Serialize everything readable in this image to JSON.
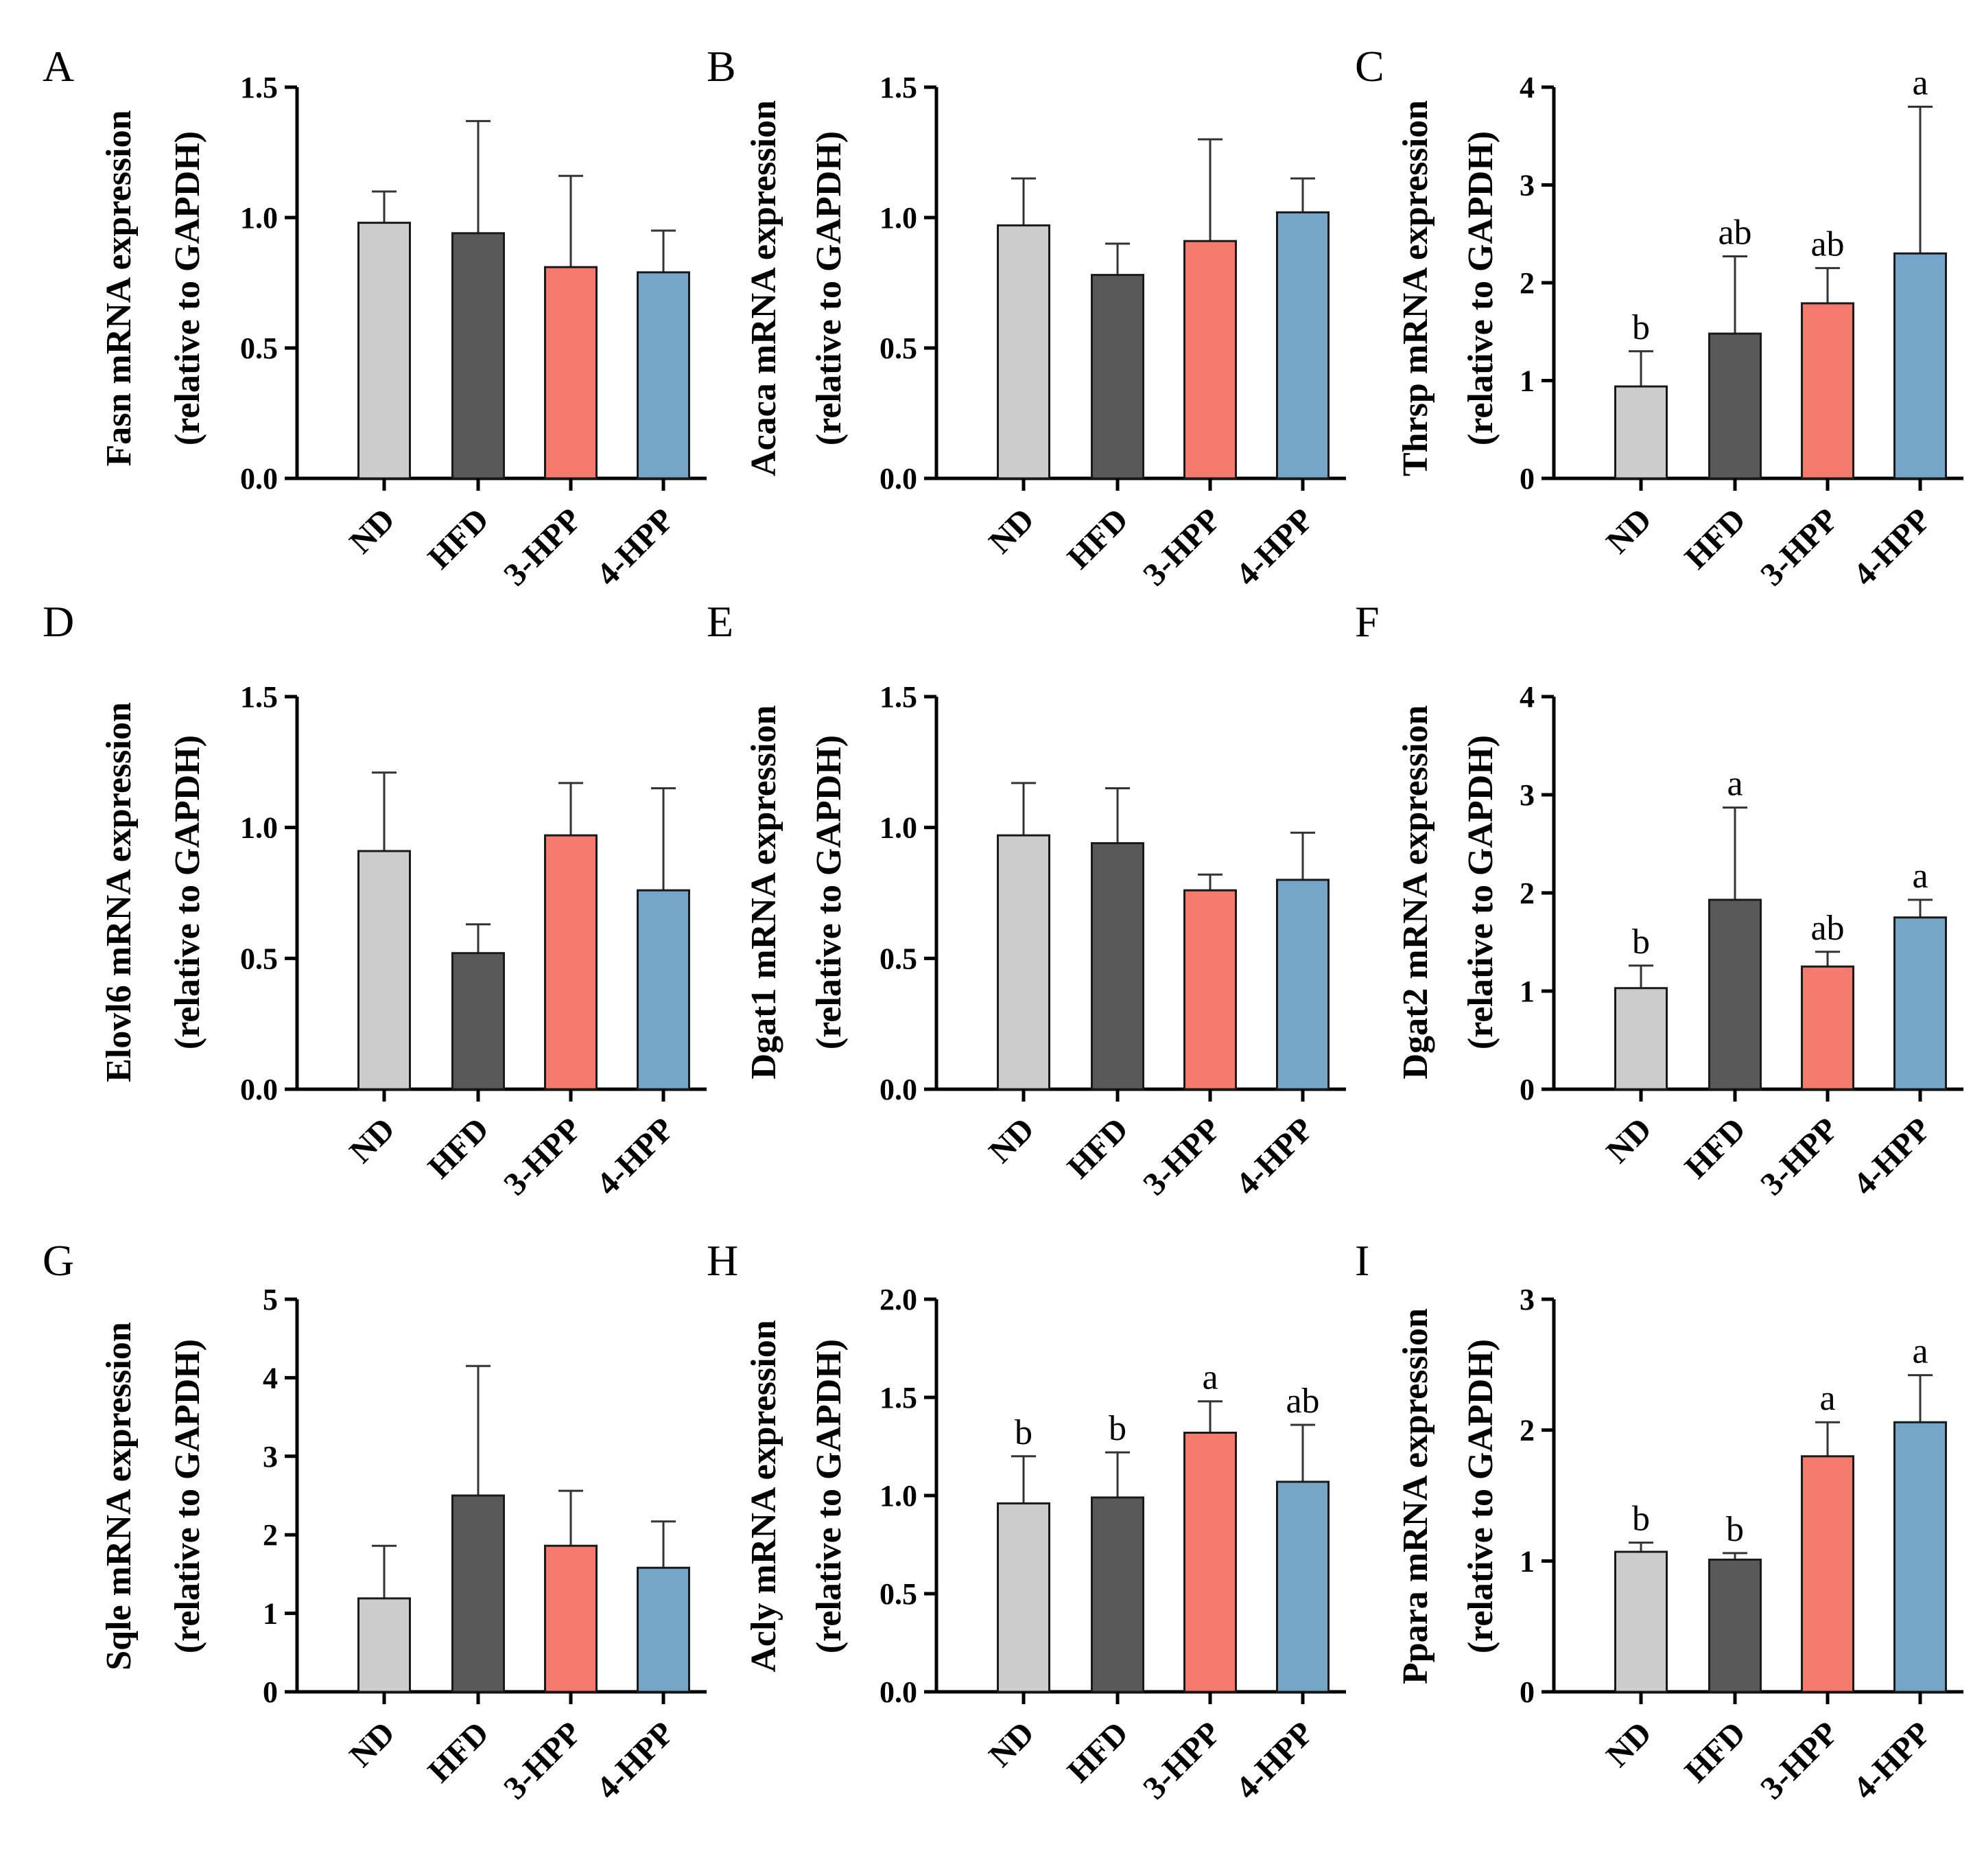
{
  "figure": {
    "categories": [
      "ND",
      "HFD",
      "3-HPP",
      "4-HPP"
    ],
    "bar_colors": [
      "#cccccc",
      "#595959",
      "#f47b6e",
      "#75a6c8"
    ]
  },
  "chart_data": [
    {
      "type": "bar",
      "panel": "A",
      "ylabel_line1": "Fasn mRNA expression",
      "ylabel_line2": "(relative to GAPDH)",
      "categories": [
        "ND",
        "HFD",
        "3-HPP",
        "4-HPP"
      ],
      "values": [
        0.98,
        0.94,
        0.81,
        0.79
      ],
      "errors": [
        0.12,
        0.43,
        0.35,
        0.16
      ],
      "significance": [
        "",
        "",
        "",
        ""
      ],
      "ylim": [
        0,
        1.5
      ],
      "yticks": [
        0.0,
        0.5,
        1.0,
        1.5
      ],
      "ytick_labels": [
        "0.0",
        "0.5",
        "1.0",
        "1.5"
      ]
    },
    {
      "type": "bar",
      "panel": "B",
      "ylabel_line1": "Acaca mRNA expression",
      "ylabel_line2": "(relative to GAPDH)",
      "categories": [
        "ND",
        "HFD",
        "3-HPP",
        "4-HPP"
      ],
      "values": [
        0.97,
        0.78,
        0.91,
        1.02
      ],
      "errors": [
        0.18,
        0.12,
        0.39,
        0.13
      ],
      "significance": [
        "",
        "",
        "",
        ""
      ],
      "ylim": [
        0,
        1.5
      ],
      "yticks": [
        0.0,
        0.5,
        1.0,
        1.5
      ],
      "ytick_labels": [
        "0.0",
        "0.5",
        "1.0",
        "1.5"
      ]
    },
    {
      "type": "bar",
      "panel": "C",
      "ylabel_line1": "Thrsp mRNA expression",
      "ylabel_line2": "(relative to GAPDH)",
      "categories": [
        "ND",
        "HFD",
        "3-HPP",
        "4-HPP"
      ],
      "values": [
        0.94,
        1.48,
        1.79,
        2.3
      ],
      "errors": [
        0.36,
        0.79,
        0.36,
        1.5
      ],
      "significance": [
        "b",
        "ab",
        "ab",
        "a"
      ],
      "ylim": [
        0,
        4
      ],
      "yticks": [
        0,
        1,
        2,
        3,
        4
      ],
      "ytick_labels": [
        "0",
        "1",
        "2",
        "3",
        "4"
      ]
    },
    {
      "type": "bar",
      "panel": "D",
      "ylabel_line1": "Elovl6 mRNA expression",
      "ylabel_line2": "(relative to GAPDH)",
      "categories": [
        "ND",
        "HFD",
        "3-HPP",
        "4-HPP"
      ],
      "values": [
        0.91,
        0.52,
        0.97,
        0.76
      ],
      "errors": [
        0.3,
        0.11,
        0.2,
        0.39
      ],
      "significance": [
        "",
        "",
        "",
        ""
      ],
      "ylim": [
        0,
        1.5
      ],
      "yticks": [
        0.0,
        0.5,
        1.0,
        1.5
      ],
      "ytick_labels": [
        "0.0",
        "0.5",
        "1.0",
        "1.5"
      ]
    },
    {
      "type": "bar",
      "panel": "E",
      "ylabel_line1": "Dgat1 mRNA expression",
      "ylabel_line2": "(relative to GAPDH)",
      "categories": [
        "ND",
        "HFD",
        "3-HPP",
        "4-HPP"
      ],
      "values": [
        0.97,
        0.94,
        0.76,
        0.8
      ],
      "errors": [
        0.2,
        0.21,
        0.06,
        0.18
      ],
      "significance": [
        "",
        "",
        "",
        ""
      ],
      "ylim": [
        0,
        1.5
      ],
      "yticks": [
        0.0,
        0.5,
        1.0,
        1.5
      ],
      "ytick_labels": [
        "0.0",
        "0.5",
        "1.0",
        "1.5"
      ]
    },
    {
      "type": "bar",
      "panel": "F",
      "ylabel_line1": "Dgat2 mRNA expression",
      "ylabel_line2": "(relative to GAPDH)",
      "categories": [
        "ND",
        "HFD",
        "3-HPP",
        "4-HPP"
      ],
      "values": [
        1.03,
        1.93,
        1.25,
        1.75
      ],
      "errors": [
        0.23,
        0.94,
        0.15,
        0.18
      ],
      "significance": [
        "b",
        "a",
        "ab",
        "a"
      ],
      "ylim": [
        0,
        4
      ],
      "yticks": [
        0,
        1,
        2,
        3,
        4
      ],
      "ytick_labels": [
        "0",
        "1",
        "2",
        "3",
        "4"
      ]
    },
    {
      "type": "bar",
      "panel": "G",
      "ylabel_line1": "Sqle mRNA expression",
      "ylabel_line2": "(relative to GAPDH)",
      "categories": [
        "ND",
        "HFD",
        "3-HPP",
        "4-HPP"
      ],
      "values": [
        1.19,
        2.5,
        1.86,
        1.58
      ],
      "errors": [
        0.67,
        1.65,
        0.7,
        0.59
      ],
      "significance": [
        "",
        "",
        "",
        ""
      ],
      "ylim": [
        0,
        5
      ],
      "yticks": [
        0,
        1,
        2,
        3,
        4,
        5
      ],
      "ytick_labels": [
        "0",
        "1",
        "2",
        "3",
        "4",
        "5"
      ]
    },
    {
      "type": "bar",
      "panel": "H",
      "ylabel_line1": "Acly mRNA expression",
      "ylabel_line2": "(relative to GAPDH)",
      "categories": [
        "ND",
        "HFD",
        "3-HPP",
        "4-HPP"
      ],
      "values": [
        0.96,
        0.99,
        1.32,
        1.07
      ],
      "errors": [
        0.24,
        0.23,
        0.16,
        0.29
      ],
      "significance": [
        "b",
        "b",
        "a",
        "ab"
      ],
      "ylim": [
        0,
        2.0
      ],
      "yticks": [
        0.0,
        0.5,
        1.0,
        1.5,
        2.0
      ],
      "ytick_labels": [
        "0.0",
        "0.5",
        "1.0",
        "1.5",
        "2.0"
      ]
    },
    {
      "type": "bar",
      "panel": "I",
      "ylabel_line1": "Ppara mRNA expression",
      "ylabel_line2": "(relative to GAPDH)",
      "categories": [
        "ND",
        "HFD",
        "3-HPP",
        "4-HPP"
      ],
      "values": [
        1.07,
        1.01,
        1.8,
        2.06
      ],
      "errors": [
        0.07,
        0.05,
        0.26,
        0.36
      ],
      "significance": [
        "b",
        "b",
        "a",
        "a"
      ],
      "ylim": [
        0,
        3
      ],
      "yticks": [
        0,
        1,
        2,
        3
      ],
      "ytick_labels": [
        "0",
        "1",
        "2",
        "3"
      ]
    }
  ]
}
